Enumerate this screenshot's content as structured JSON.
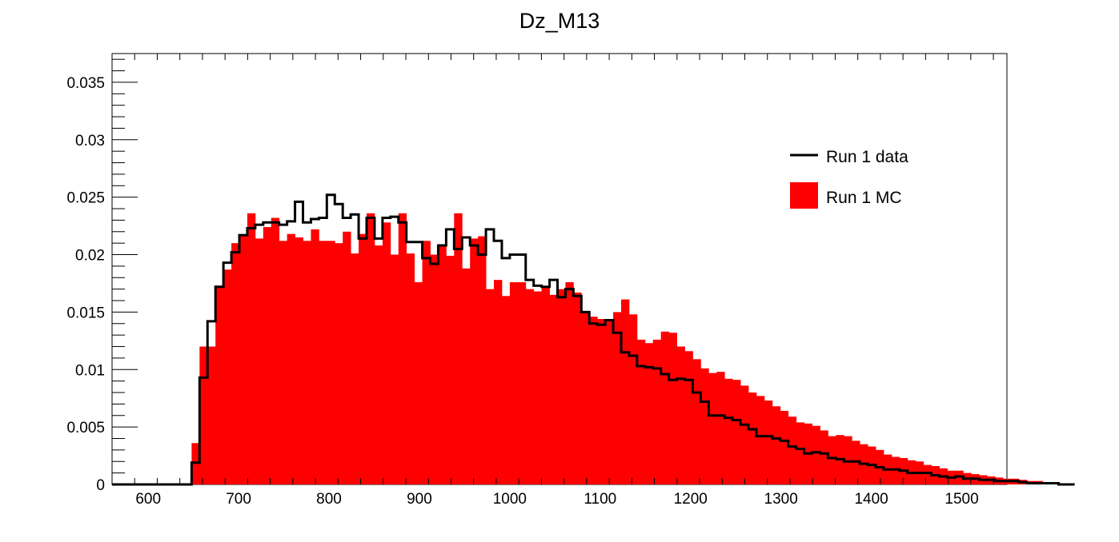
{
  "chart_data": {
    "type": "bar",
    "title": "Dz_M13",
    "xlabel": "",
    "ylabel": "",
    "xlim": [
      560,
      1550
    ],
    "ylim": [
      0,
      0.0375
    ],
    "grid": false,
    "legend_position": "top-right",
    "x_ticks": [
      600,
      700,
      800,
      900,
      1000,
      1100,
      1200,
      1300,
      1400,
      1500
    ],
    "x_tick_labels": [
      "600",
      "700",
      "800",
      "900",
      "1000",
      "1100",
      "1200",
      "1300",
      "1400",
      "1500"
    ],
    "y_ticks": [
      0,
      0.005,
      0.01,
      0.015,
      0.02,
      0.025,
      0.03,
      0.035
    ],
    "y_tick_labels": [
      "0",
      "0.005",
      "0.01",
      "0.015",
      "0.02",
      "0.025",
      "0.03",
      "0.035"
    ],
    "bin_edges_start": 560,
    "bin_width": 8.8,
    "series": [
      {
        "name": "Run 1 data",
        "style": "step-line",
        "color": "#000000",
        "values": [
          0,
          0,
          0,
          0,
          0,
          0,
          0,
          0,
          0,
          0,
          0.0019,
          0.0093,
          0.0142,
          0.0172,
          0.0193,
          0.0202,
          0.0217,
          0.0223,
          0.0226,
          0.0228,
          0.0228,
          0.0226,
          0.0229,
          0.0246,
          0.0228,
          0.0231,
          0.0232,
          0.0252,
          0.0244,
          0.0232,
          0.0235,
          0.0214,
          0.0232,
          0.0214,
          0.0232,
          0.0233,
          0.0228,
          0.0211,
          0.0211,
          0.0197,
          0.0192,
          0.0208,
          0.0222,
          0.0205,
          0.0215,
          0.0208,
          0.02,
          0.0222,
          0.0212,
          0.0197,
          0.02,
          0.02,
          0.0178,
          0.0173,
          0.0172,
          0.0178,
          0.0163,
          0.017,
          0.0164,
          0.015,
          0.014,
          0.0139,
          0.0143,
          0.0132,
          0.0115,
          0.0112,
          0.0103,
          0.0102,
          0.0101,
          0.0096,
          0.0091,
          0.0092,
          0.0091,
          0.008,
          0.0072,
          0.006,
          0.006,
          0.0058,
          0.0056,
          0.0052,
          0.0048,
          0.0042,
          0.0042,
          0.004,
          0.0038,
          0.0033,
          0.0031,
          0.0027,
          0.0028,
          0.0027,
          0.0023,
          0.0022,
          0.002,
          0.002,
          0.0018,
          0.0017,
          0.0015,
          0.0013,
          0.0013,
          0.0012,
          0.001,
          0.001,
          0.001,
          0.0008,
          0.0007,
          0.0006,
          0.0007,
          0.0005,
          0.0005,
          0.0004,
          0.0004,
          0.0003,
          0.0003,
          0.0003,
          0.0002,
          0.0001,
          0.0001,
          0.0001,
          0.0001,
          0.0,
          0.0
        ]
      },
      {
        "name": "Run 1 MC",
        "style": "filled-histogram",
        "color": "#ff0000",
        "values": [
          0,
          0,
          0,
          0,
          0,
          0,
          0,
          0,
          0,
          0,
          0.0036,
          0.012,
          0.012,
          0.0173,
          0.0187,
          0.021,
          0.0216,
          0.0236,
          0.0214,
          0.0224,
          0.0232,
          0.0212,
          0.0218,
          0.0215,
          0.0212,
          0.0222,
          0.0212,
          0.0212,
          0.021,
          0.022,
          0.0201,
          0.0218,
          0.0236,
          0.0208,
          0.0228,
          0.02,
          0.0236,
          0.0201,
          0.0176,
          0.0212,
          0.02,
          0.0207,
          0.0199,
          0.0236,
          0.0188,
          0.0214,
          0.0216,
          0.017,
          0.0178,
          0.0164,
          0.0176,
          0.0176,
          0.017,
          0.0168,
          0.0172,
          0.0165,
          0.017,
          0.0176,
          0.0167,
          0.0151,
          0.0146,
          0.0144,
          0.0144,
          0.015,
          0.0161,
          0.0148,
          0.0126,
          0.0123,
          0.0126,
          0.0133,
          0.0132,
          0.012,
          0.0116,
          0.0109,
          0.0101,
          0.0097,
          0.0098,
          0.0092,
          0.0091,
          0.0086,
          0.008,
          0.0077,
          0.0073,
          0.0068,
          0.0064,
          0.0059,
          0.0054,
          0.0053,
          0.0051,
          0.0047,
          0.0042,
          0.0043,
          0.0042,
          0.0038,
          0.0035,
          0.0033,
          0.003,
          0.0026,
          0.0024,
          0.0023,
          0.0021,
          0.002,
          0.0017,
          0.0016,
          0.0014,
          0.0012,
          0.0012,
          0.001,
          0.0009,
          0.0008,
          0.0007,
          0.0006,
          0.0005,
          0.0005,
          0.0004,
          0.0003,
          0.0003,
          0.0002,
          0.0002,
          0.0001,
          0.0001
        ]
      }
    ]
  }
}
